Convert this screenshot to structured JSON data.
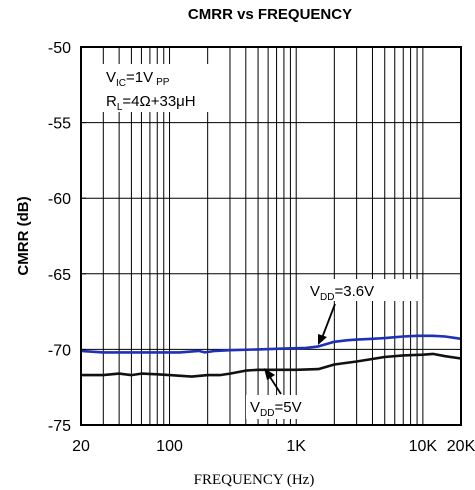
{
  "chart_data": {
    "type": "line",
    "title": "CMRR vs FREQUENCY",
    "xlabel": "FREQUENCY (Hz)",
    "ylabel": "CMRR (dB)",
    "xscale": "log",
    "xlim": [
      20,
      20000
    ],
    "ylim": [
      -75,
      -50
    ],
    "yticks": [
      -50,
      -55,
      -60,
      -65,
      -70,
      -75
    ],
    "xticks": [
      {
        "value": 20,
        "label": "20"
      },
      {
        "value": 100,
        "label": "100"
      },
      {
        "value": 1000,
        "label": "1K"
      },
      {
        "value": 10000,
        "label": "10K"
      },
      {
        "value": 20000,
        "label": "20K"
      }
    ],
    "grid": true,
    "conditions": {
      "vic": {
        "main": "V",
        "sub": "IC",
        "rest": "=1V",
        "sub2": "PP"
      },
      "rl": {
        "main": "R",
        "sub": "L",
        "rest": "=4Ω+33μH"
      }
    },
    "annotations": [
      {
        "series": 0,
        "main": "V",
        "sub": "DD",
        "rest": "=3.6V"
      },
      {
        "series": 1,
        "main": "V",
        "sub": "DD",
        "rest": "=5V"
      }
    ],
    "series": [
      {
        "color": "#1f2fb8",
        "x": [
          20,
          30,
          50,
          80,
          120,
          170,
          190,
          230,
          300,
          500,
          800,
          1200,
          1500,
          2000,
          2500,
          3000,
          4000,
          5000,
          7000,
          9000,
          12000,
          15000,
          20000
        ],
        "y": [
          -70.1,
          -70.2,
          -70.2,
          -70.2,
          -70.2,
          -70.1,
          -70.2,
          -70.1,
          -70.05,
          -70.0,
          -69.95,
          -69.9,
          -69.8,
          -69.5,
          -69.4,
          -69.35,
          -69.3,
          -69.25,
          -69.15,
          -69.1,
          -69.1,
          -69.15,
          -69.3
        ]
      },
      {
        "color": "#111111",
        "x": [
          20,
          30,
          40,
          50,
          60,
          80,
          100,
          150,
          200,
          250,
          300,
          400,
          500,
          700,
          1000,
          1500,
          2000,
          3000,
          5000,
          7000,
          10000,
          12000,
          15000,
          20000
        ],
        "y": [
          -71.7,
          -71.7,
          -71.6,
          -71.7,
          -71.6,
          -71.65,
          -71.7,
          -71.8,
          -71.7,
          -71.7,
          -71.6,
          -71.4,
          -71.35,
          -71.35,
          -71.35,
          -71.3,
          -71.0,
          -70.8,
          -70.5,
          -70.4,
          -70.35,
          -70.3,
          -70.45,
          -70.6
        ]
      }
    ]
  }
}
